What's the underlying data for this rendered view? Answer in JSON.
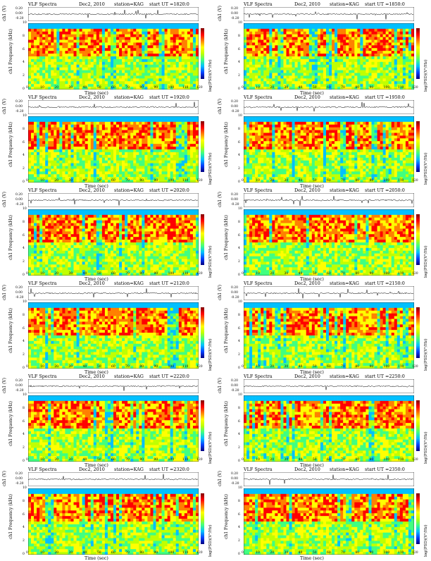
{
  "panel_common": {
    "title": "VLF Spectra",
    "date": "Dec2, 2010",
    "station": "station=KAG",
    "ylabel_ts": "ch1 (V)",
    "ylabel_spec": "ch1 Frequency (kHz)",
    "xlabel": "Time (sec)",
    "colorbar_label": "log(PSD)(V²/Hz)"
  },
  "panels": [
    {
      "start": "start UT =1820:0"
    },
    {
      "start": "start UT =1850:0"
    },
    {
      "start": "start UT =1920:0"
    },
    {
      "start": "start UT =1950:0"
    },
    {
      "start": "start UT =2020:0"
    },
    {
      "start": "start UT =2050:0"
    },
    {
      "start": "start UT =2120:0"
    },
    {
      "start": "start UT =2150:0"
    },
    {
      "start": "start UT =2220:0"
    },
    {
      "start": "start UT =2250:0"
    },
    {
      "start": "start UT =2320:0"
    },
    {
      "start": "start UT =2350:0"
    }
  ],
  "chart_data": {
    "type": "heatmap",
    "x_ticks": [
      0,
      10,
      20,
      30,
      40,
      50,
      60,
      70,
      80,
      90,
      100,
      110,
      120
    ],
    "y_ticks": [
      0,
      2,
      4,
      6,
      8,
      10
    ],
    "ts_ticks": [
      "0.20",
      "0.00",
      "-0.20"
    ],
    "xlim": [
      0,
      120
    ],
    "ylim": [
      0,
      10
    ],
    "colors": [
      "#000080",
      "#0040ff",
      "#00c0ff",
      "#40ff80",
      "#c0ff00",
      "#ffff00",
      "#ff8000",
      "#ff0000",
      "#800000"
    ]
  }
}
